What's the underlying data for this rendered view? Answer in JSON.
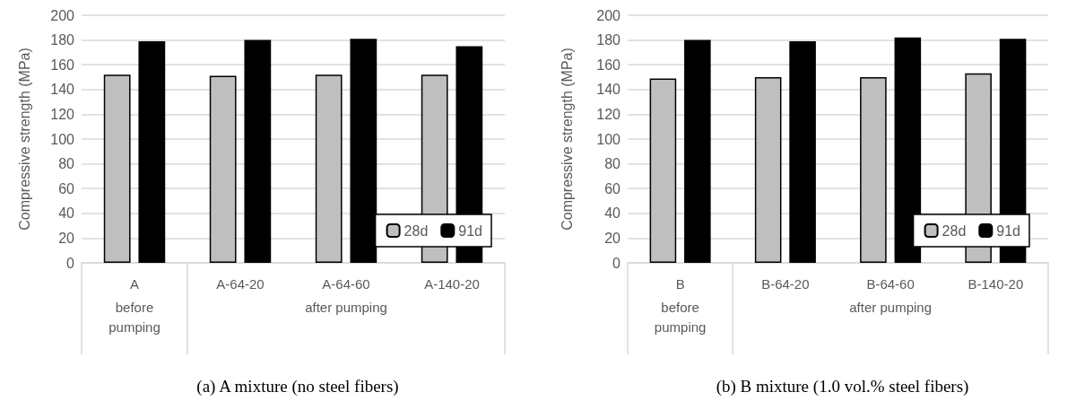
{
  "chart_data": [
    {
      "type": "bar",
      "title": "(a) A mixture (no steel fibers)",
      "ylabel": "Compressive strength (MPa)",
      "categories": [
        "A",
        "A-64-20",
        "A-64-60",
        "A-140-20"
      ],
      "annotations": [
        "before pumping",
        "after pumping"
      ],
      "series": [
        {
          "name": "28d",
          "color": "#bfbfbf",
          "values": [
            152,
            151,
            152,
            152
          ]
        },
        {
          "name": "91d",
          "color": "#000000",
          "values": [
            179,
            180,
            181,
            175
          ]
        }
      ],
      "ylim": [
        0,
        200
      ],
      "yticks": [
        0,
        20,
        40,
        60,
        80,
        100,
        120,
        140,
        160,
        180,
        200
      ],
      "grid": "y",
      "legend": "bottom right"
    },
    {
      "type": "bar",
      "title": "(b) B mixture (1.0 vol.% steel fibers)",
      "ylabel": "Compressive strength (MPa)",
      "categories": [
        "B",
        "B-64-20",
        "B-64-60",
        "B-140-20"
      ],
      "annotations": [
        "before pumping",
        "after pumping"
      ],
      "series": [
        {
          "name": "28d",
          "color": "#bfbfbf",
          "values": [
            149,
            150,
            150,
            153
          ]
        },
        {
          "name": "91d",
          "color": "#000000",
          "values": [
            180,
            179,
            182,
            181
          ]
        }
      ],
      "ylim": [
        0,
        200
      ],
      "yticks": [
        0,
        20,
        40,
        60,
        80,
        100,
        120,
        140,
        160,
        180,
        200
      ],
      "grid": "y",
      "legend": "bottom right"
    }
  ]
}
